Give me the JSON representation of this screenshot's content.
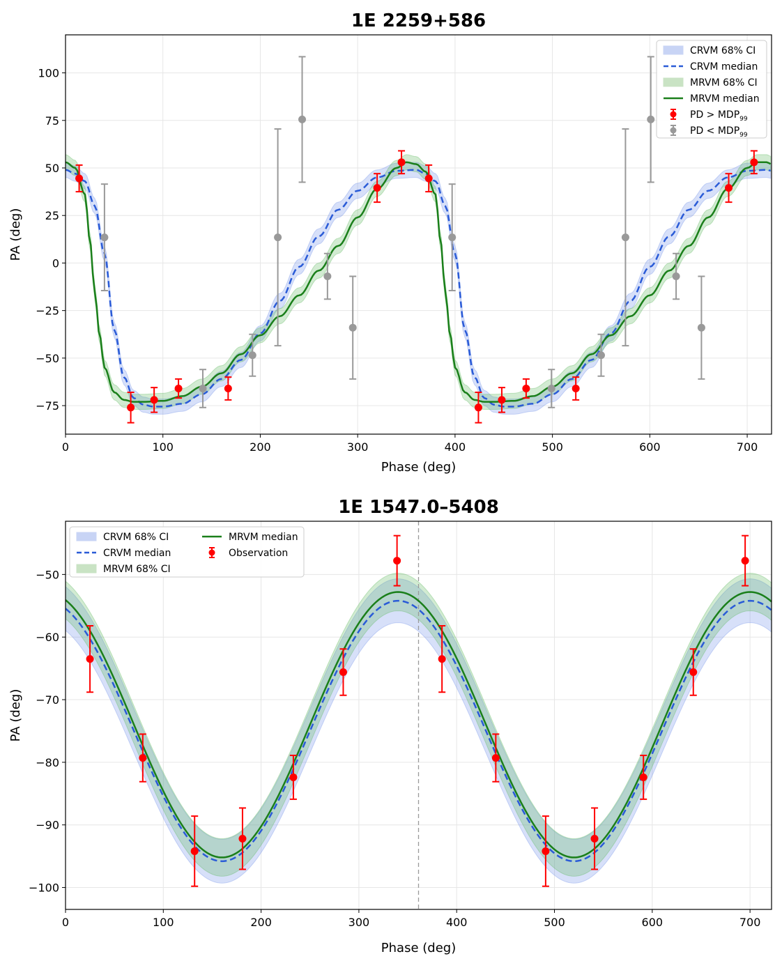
{
  "chart_data": [
    {
      "type": "line",
      "title": "1E 2259+586",
      "xlabel": "Phase (deg)",
      "ylabel": "PA (deg)",
      "xlim": [
        0,
        725
      ],
      "ylim": [
        -90,
        120
      ],
      "xticks": [
        0,
        100,
        200,
        300,
        400,
        500,
        600,
        700
      ],
      "yticks": [
        -75,
        -50,
        -25,
        0,
        25,
        50,
        75,
        100
      ],
      "grid": true,
      "legend_position": "top-right",
      "legend_columns": 1,
      "legend": [
        {
          "label": "CRVM 68% CI",
          "kind": "band",
          "color": "#c8d4f5"
        },
        {
          "label": "CRVM median",
          "kind": "dashed",
          "color": "#2a5bd7"
        },
        {
          "label": "MRVM 68% CI",
          "kind": "band",
          "color": "#c9e3c4"
        },
        {
          "label": "MRVM median",
          "kind": "line",
          "color": "#1a7f1a"
        },
        {
          "label": "PD > MDP",
          "sub": "99",
          "kind": "errorbar",
          "color": "#ff0000"
        },
        {
          "label": "PD < MDP",
          "sub": "99",
          "kind": "errorbar",
          "color": "#999999"
        }
      ],
      "crvm_median": {
        "x": [
          0,
          10,
          20,
          30,
          40,
          50,
          60,
          70,
          80,
          90,
          100,
          120,
          140,
          160,
          180,
          200,
          220,
          240,
          260,
          280,
          300,
          320,
          340,
          360,
          370,
          380,
          390,
          400,
          410,
          420,
          430,
          440,
          450,
          460,
          480,
          500,
          520,
          540,
          560,
          580,
          600,
          620,
          640,
          660,
          680,
          700,
          720,
          725
        ],
        "y": [
          49,
          47,
          43,
          30,
          5,
          -35,
          -60,
          -71,
          -74.5,
          -75.5,
          -75.5,
          -74,
          -69,
          -61,
          -51,
          -37,
          -20,
          -2,
          14,
          28,
          38,
          45,
          48.5,
          49,
          47,
          43,
          30,
          5,
          -35,
          -60,
          -71,
          -74.5,
          -75.5,
          -75.5,
          -74,
          -69,
          -61,
          -51,
          -37,
          -20,
          -2,
          14,
          28,
          38,
          45,
          48.5,
          49,
          48.5
        ],
        "ci_width": 4
      },
      "mrvm_median": {
        "x": [
          0,
          10,
          20,
          25,
          30,
          35,
          40,
          50,
          60,
          70,
          80,
          100,
          120,
          140,
          160,
          180,
          200,
          220,
          240,
          260,
          280,
          300,
          320,
          340,
          350,
          360,
          370,
          380,
          385,
          390,
          395,
          400,
          410,
          420,
          430,
          440,
          460,
          480,
          500,
          520,
          540,
          560,
          580,
          600,
          620,
          640,
          660,
          680,
          700,
          710,
          720,
          725
        ],
        "y": [
          53,
          50,
          36,
          12,
          -15,
          -38,
          -55,
          -68,
          -72,
          -73,
          -73,
          -72.5,
          -70,
          -65,
          -58,
          -48,
          -38,
          -28,
          -17,
          -4,
          9,
          24,
          39,
          50,
          53,
          52,
          48,
          36,
          12,
          -15,
          -38,
          -55,
          -68,
          -72,
          -73,
          -73,
          -72.5,
          -70,
          -65,
          -58,
          -48,
          -38,
          -28,
          -17,
          -4,
          9,
          24,
          39,
          50,
          53,
          53,
          52
        ],
        "ci_width": 4
      },
      "series": [
        {
          "name": "PD > MDP99",
          "color": "#ff0000",
          "x": [
            14,
            67,
            91,
            116,
            167,
            320,
            345,
            373,
            424,
            448,
            473,
            524,
            681,
            707
          ],
          "y": [
            44.5,
            -76,
            -72,
            -66,
            -66,
            39.5,
            53,
            44.5,
            -76,
            -72,
            -66,
            -66,
            39.5,
            53
          ],
          "yerr": [
            7,
            8,
            6.5,
            5,
            6,
            7.5,
            6,
            7,
            8,
            6.5,
            5,
            6,
            7.5,
            6
          ]
        },
        {
          "name": "PD < MDP99",
          "color": "#999999",
          "x": [
            40,
            141,
            192,
            218,
            243,
            269,
            295,
            397,
            499,
            550,
            575,
            601,
            627,
            653
          ],
          "y": [
            13.5,
            -66,
            -48.5,
            13.5,
            75.5,
            -7,
            -34,
            13.5,
            -66,
            -48.5,
            13.5,
            75.5,
            -7,
            -34
          ],
          "yerr": [
            28,
            10,
            11,
            57,
            33,
            12,
            27,
            28,
            10,
            11,
            57,
            33,
            12,
            27
          ]
        }
      ]
    },
    {
      "type": "line",
      "title": "1E 1547.0–5408",
      "xlabel": "Phase (deg)",
      "ylabel": "PA (deg)",
      "xlim": [
        0,
        722
      ],
      "ylim": [
        -103.5,
        -41.5
      ],
      "xticks": [
        0,
        100,
        200,
        300,
        400,
        500,
        600,
        700
      ],
      "yticks": [
        -100,
        -90,
        -80,
        -70,
        -60,
        -50
      ],
      "grid": true,
      "vline_x": 361,
      "legend_position": "top-left",
      "legend_columns": 2,
      "legend": [
        {
          "label": "CRVM 68% CI",
          "kind": "band",
          "color": "#c8d4f5"
        },
        {
          "label": "CRVM median",
          "kind": "dashed",
          "color": "#2a5bd7"
        },
        {
          "label": "MRVM 68% CI",
          "kind": "band",
          "color": "#c9e3c4"
        },
        {
          "label": "MRVM median",
          "kind": "line",
          "color": "#1a7f1a"
        },
        {
          "label": "Observation",
          "kind": "errorbar",
          "color": "#ff0000"
        }
      ],
      "crvm_median": {
        "center": -75,
        "amplitude": 20.8,
        "peak_phase": 340,
        "ci_width": 3.5
      },
      "mrvm_median": {
        "center": -74,
        "amplitude": 21.2,
        "peak_phase": 340,
        "ci_width": 3
      },
      "series": [
        {
          "name": "Observation",
          "color": "#ff0000",
          "x": [
            25,
            79,
            132,
            181,
            233,
            284,
            339,
            385,
            440,
            491,
            541,
            591,
            642,
            695
          ],
          "y": [
            -63.5,
            -79.3,
            -94.2,
            -92.2,
            -82.4,
            -65.6,
            -47.8,
            -63.5,
            -79.3,
            -94.2,
            -92.2,
            -82.4,
            -65.6,
            -47.8
          ],
          "yerr": [
            5.3,
            3.8,
            5.6,
            4.9,
            3.5,
            3.7,
            4,
            5.3,
            3.8,
            5.6,
            4.9,
            3.5,
            3.7,
            4
          ]
        }
      ]
    }
  ]
}
